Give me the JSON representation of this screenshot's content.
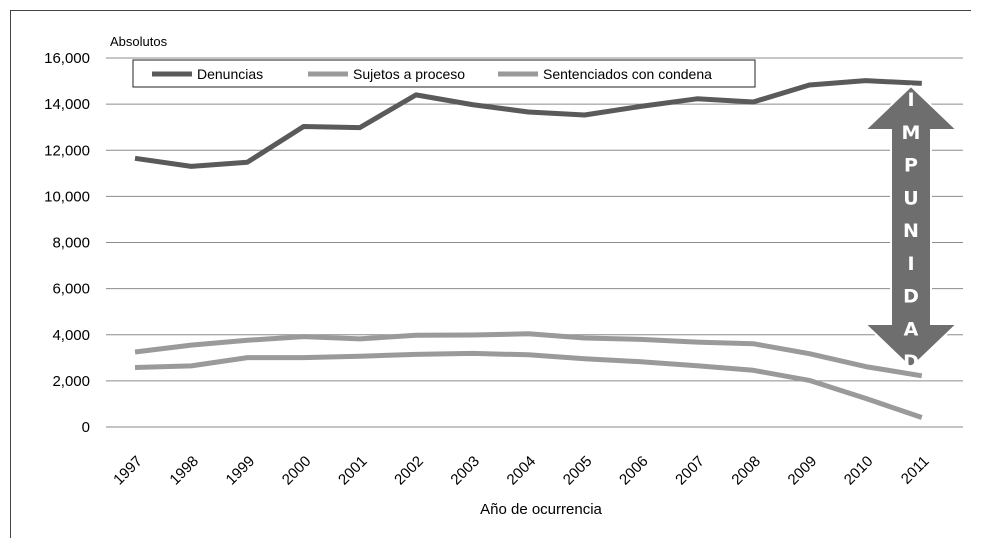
{
  "chart_data": {
    "type": "line",
    "unit_label": "Absolutos",
    "xlabel": "Año de ocurrencia",
    "ylabel": "",
    "ylim": [
      0,
      16000
    ],
    "yticks": [
      0,
      2000,
      4000,
      6000,
      8000,
      10000,
      12000,
      14000,
      16000
    ],
    "ytick_labels": [
      "0",
      "2,000",
      "4,000",
      "6,000",
      "8,000",
      "10,000",
      "12,000",
      "14,000",
      "16,000"
    ],
    "categories": [
      "1997",
      "1998",
      "1999",
      "2000",
      "2001",
      "2002",
      "2003",
      "2004",
      "2005",
      "2006",
      "2007",
      "2008",
      "2009",
      "2010",
      "2011"
    ],
    "grid": true,
    "legend_placement": "top",
    "series": [
      {
        "name": "Denuncias",
        "color": "#5a5a5a",
        "values": [
          11650,
          11300,
          11480,
          13030,
          12980,
          14400,
          13980,
          13660,
          13530,
          13900,
          14230,
          14090,
          14830,
          15020,
          14900
        ]
      },
      {
        "name": "Sujetos a proceso",
        "color": "#9a9a9a",
        "values": [
          3250,
          3550,
          3760,
          3920,
          3820,
          3980,
          3990,
          4040,
          3860,
          3800,
          3680,
          3610,
          3180,
          2620,
          2220
        ]
      },
      {
        "name": "Sentenciados con condena",
        "color": "#9a9a9a",
        "values": [
          2580,
          2650,
          3010,
          3010,
          3070,
          3150,
          3190,
          3130,
          2960,
          2830,
          2660,
          2460,
          2020,
          1240,
          410
        ]
      }
    ],
    "annotation": {
      "letters": [
        "I",
        "M",
        "P",
        "U",
        "N",
        "I",
        "D",
        "A",
        "D"
      ],
      "color": "#6e6e6e",
      "from_value": 14900,
      "to_value": 2220,
      "category": "2011"
    }
  }
}
